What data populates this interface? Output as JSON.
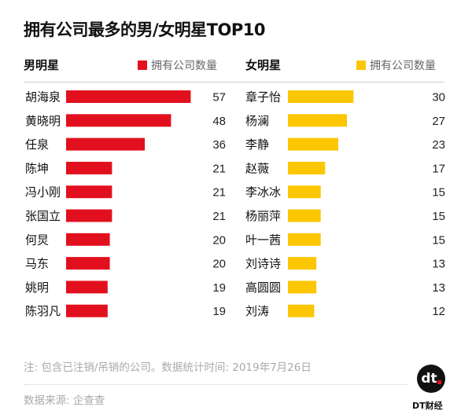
{
  "chart_data": [
    {
      "type": "bar",
      "orientation": "horizontal",
      "title": "拥有公司最多的男/女明星TOP10",
      "group_label": "男明星",
      "legend": "拥有公司数量",
      "color": "#e2101e",
      "categories": [
        "胡海泉",
        "黄晓明",
        "任泉",
        "陈坤",
        "冯小刚",
        "张国立",
        "何炅",
        "马东",
        "姚明",
        "陈羽凡"
      ],
      "values": [
        57,
        48,
        36,
        21,
        21,
        21,
        20,
        20,
        19,
        19
      ]
    },
    {
      "type": "bar",
      "orientation": "horizontal",
      "group_label": "女明星",
      "legend": "拥有公司数量",
      "color": "#fcc600",
      "categories": [
        "章子怡",
        "杨澜",
        "李静",
        "赵薇",
        "李冰冰",
        "杨丽萍",
        "叶一茜",
        "刘诗诗",
        "高圆圆",
        "刘涛"
      ],
      "values": [
        30,
        27,
        23,
        17,
        15,
        15,
        15,
        13,
        13,
        12
      ]
    }
  ],
  "note": "注: 包含已注销/吊销的公司。数据统计时间: 2019年7月26日",
  "source": "数据来源: 企查查",
  "brand": {
    "logo_text": "dt",
    "name": "DT财经"
  }
}
